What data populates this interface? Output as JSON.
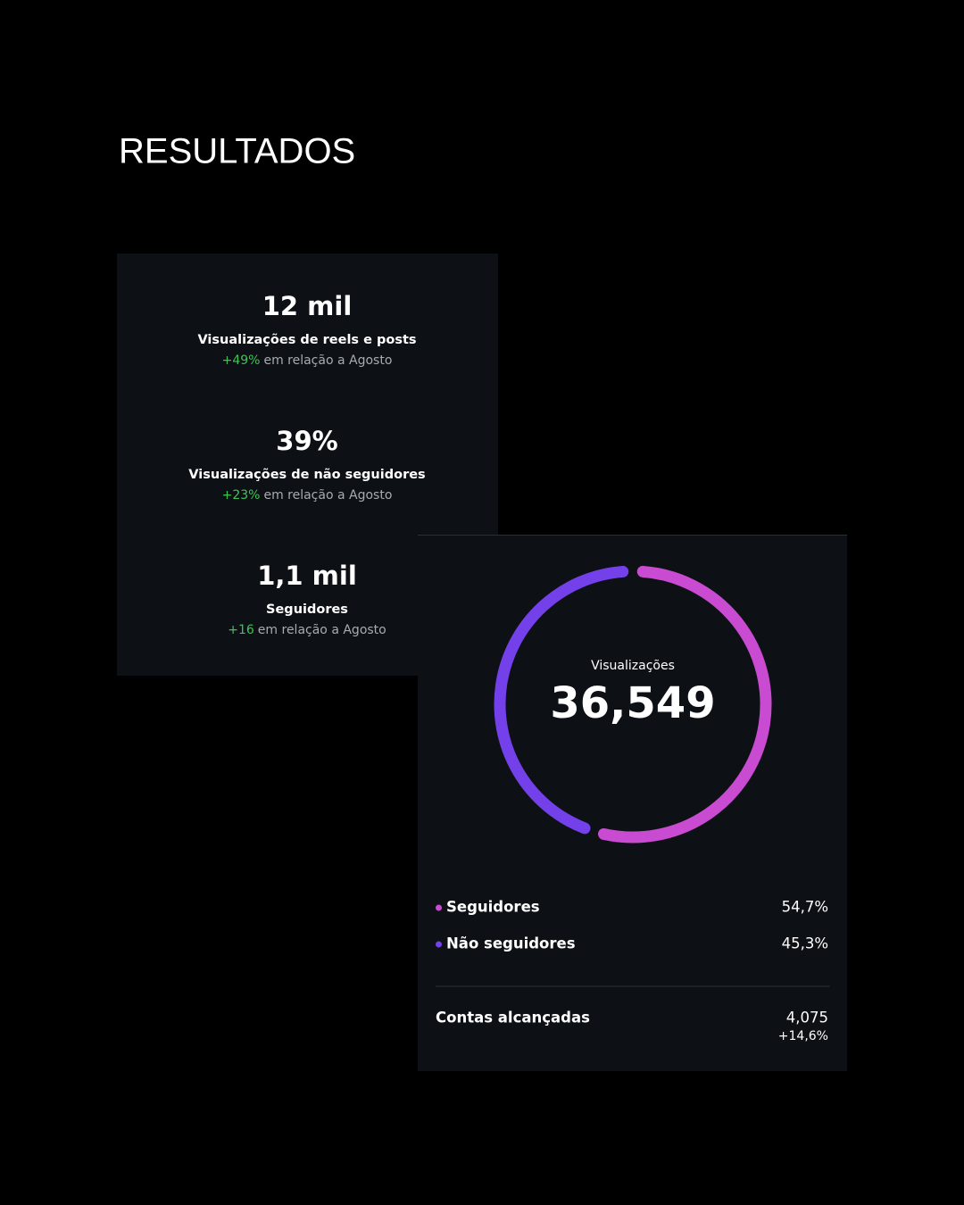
{
  "title": "RESULTADOS",
  "stats": [
    {
      "value": "12 mil",
      "label": "Visualizações de reels e posts",
      "change": "+49%",
      "comparison": "em relação a Agosto"
    },
    {
      "value": "39%",
      "label": "Visualizações de não seguidores",
      "change": "+23%",
      "comparison": "em relação a Agosto"
    },
    {
      "value": "1,1 mil",
      "label": "Seguidores",
      "change": "+16",
      "comparison": "em relação a Agosto"
    }
  ],
  "chart_data": {
    "type": "pie",
    "center_label": "Visualizações",
    "center_value": "36,549",
    "categories": [
      "Seguidores",
      "Não seguidores"
    ],
    "values": [
      54.7,
      45.3
    ],
    "value_labels": [
      "54,7%",
      "45,3%"
    ],
    "colors": [
      "#c94bd1",
      "#7440ea"
    ]
  },
  "summary": {
    "label": "Contas alcançadas",
    "value": "4,075",
    "change": "+14,6%"
  }
}
